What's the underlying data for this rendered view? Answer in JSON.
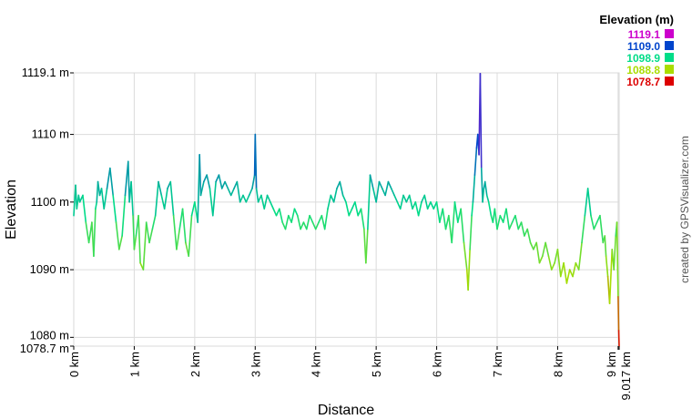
{
  "chart_data": {
    "type": "line",
    "xlabel": "Distance",
    "ylabel": "Elevation",
    "xlim": [
      0,
      9.017
    ],
    "ylim": [
      1078.7,
      1119.1
    ],
    "x_ticks": [
      {
        "value": 0,
        "label": "0 km"
      },
      {
        "value": 1,
        "label": "1 km"
      },
      {
        "value": 2,
        "label": "2 km"
      },
      {
        "value": 3,
        "label": "3 km"
      },
      {
        "value": 4,
        "label": "4 km"
      },
      {
        "value": 5,
        "label": "5 km"
      },
      {
        "value": 6,
        "label": "6 km"
      },
      {
        "value": 7,
        "label": "7 km"
      },
      {
        "value": 8,
        "label": "8 km"
      },
      {
        "value": 9,
        "label": "9 km"
      },
      {
        "value": 9.017,
        "label": "9.017 km"
      }
    ],
    "y_ticks": [
      {
        "value": 1078.7,
        "label": "1078.7 m"
      },
      {
        "value": 1080,
        "label": "1080 m"
      },
      {
        "value": 1090,
        "label": "1090 m"
      },
      {
        "value": 1100,
        "label": "1100 m"
      },
      {
        "value": 1110,
        "label": "1110 m"
      },
      {
        "value": 1119.1,
        "label": "1119.1 m"
      }
    ],
    "grid": true,
    "legend": {
      "title": "Elevation (m)",
      "placement": "top-right",
      "entries": [
        {
          "label": "1119.1",
          "color": "#cc00cc"
        },
        {
          "label": "1109.0",
          "color": "#0044cc"
        },
        {
          "label": "1098.9",
          "color": "#00dd88"
        },
        {
          "label": "1088.8",
          "color": "#aadd00"
        },
        {
          "label": "1078.7",
          "color": "#dd0000"
        }
      ]
    },
    "series": [
      {
        "x": [
          0,
          0.03,
          0.05,
          0.08,
          0.1,
          0.15,
          0.2,
          0.25,
          0.3,
          0.33,
          0.36,
          0.38,
          0.4,
          0.43,
          0.46,
          0.5,
          0.55,
          0.6,
          0.65,
          0.7,
          0.75,
          0.8,
          0.85,
          0.9,
          0.92,
          0.95,
          0.98,
          1.0,
          1.03,
          1.07,
          1.1,
          1.15,
          1.2,
          1.25,
          1.3,
          1.35,
          1.4,
          1.45,
          1.5,
          1.55,
          1.6,
          1.65,
          1.7,
          1.75,
          1.8,
          1.85,
          1.9,
          1.95,
          2.0,
          2.05,
          2.08,
          2.1,
          2.15,
          2.2,
          2.25,
          2.3,
          2.35,
          2.4,
          2.45,
          2.5,
          2.55,
          2.6,
          2.65,
          2.7,
          2.75,
          2.8,
          2.85,
          2.9,
          2.95,
          2.99,
          3.0,
          3.02,
          3.05,
          3.1,
          3.15,
          3.2,
          3.25,
          3.3,
          3.35,
          3.4,
          3.45,
          3.5,
          3.55,
          3.6,
          3.65,
          3.7,
          3.75,
          3.8,
          3.85,
          3.9,
          3.95,
          4.0,
          4.05,
          4.1,
          4.15,
          4.2,
          4.25,
          4.3,
          4.35,
          4.4,
          4.45,
          4.5,
          4.55,
          4.6,
          4.65,
          4.7,
          4.75,
          4.8,
          4.83,
          4.86,
          4.9,
          4.95,
          5.0,
          5.05,
          5.1,
          5.15,
          5.2,
          5.25,
          5.3,
          5.35,
          5.4,
          5.45,
          5.5,
          5.55,
          5.6,
          5.65,
          5.7,
          5.75,
          5.8,
          5.85,
          5.9,
          5.95,
          6.0,
          6.05,
          6.1,
          6.15,
          6.2,
          6.25,
          6.3,
          6.35,
          6.4,
          6.45,
          6.5,
          6.52,
          6.55,
          6.58,
          6.6,
          6.63,
          6.66,
          6.68,
          6.7,
          6.72,
          6.74,
          6.76,
          6.78,
          6.8,
          6.83,
          6.86,
          6.9,
          6.93,
          6.96,
          7.0,
          7.05,
          7.1,
          7.15,
          7.2,
          7.25,
          7.3,
          7.35,
          7.4,
          7.45,
          7.5,
          7.55,
          7.6,
          7.65,
          7.7,
          7.75,
          7.8,
          7.85,
          7.9,
          7.95,
          8.0,
          8.05,
          8.1,
          8.15,
          8.2,
          8.25,
          8.3,
          8.35,
          8.4,
          8.45,
          8.5,
          8.55,
          8.6,
          8.65,
          8.7,
          8.75,
          8.78,
          8.8,
          8.83,
          8.86,
          8.9,
          8.93,
          8.96,
          8.98,
          9.0,
          9.01,
          9.017
        ],
        "y": [
          1098,
          1102.5,
          1099,
          1101,
          1100,
          1101,
          1097,
          1094,
          1097,
          1092,
          1099,
          1100,
          1103,
          1101,
          1102,
          1099,
          1102,
          1105,
          1101,
          1097,
          1093,
          1095,
          1101,
          1106,
          1100,
          1103,
          1098,
          1093,
          1095,
          1098,
          1091,
          1090,
          1097,
          1094,
          1096,
          1098,
          1103,
          1101,
          1099,
          1102,
          1103,
          1098,
          1093,
          1096,
          1099,
          1094,
          1092,
          1098,
          1100,
          1097,
          1107,
          1101,
          1103,
          1104,
          1102,
          1098,
          1103,
          1104,
          1102,
          1103,
          1102,
          1101,
          1102,
          1103,
          1100,
          1101,
          1100,
          1101,
          1102,
          1104,
          1110,
          1102,
          1100,
          1101,
          1099,
          1101,
          1100,
          1099,
          1098,
          1099,
          1097,
          1096,
          1098,
          1097,
          1099,
          1098,
          1096,
          1097,
          1096,
          1098,
          1097,
          1096,
          1097,
          1098,
          1096,
          1099,
          1101,
          1100,
          1102,
          1103,
          1101,
          1100,
          1098,
          1099,
          1100,
          1098,
          1099,
          1096,
          1091,
          1096,
          1104,
          1102,
          1100,
          1103,
          1102,
          1101,
          1103,
          1102,
          1101,
          1100,
          1099,
          1101,
          1100,
          1101,
          1099,
          1100,
          1098,
          1100,
          1101,
          1099,
          1100,
          1099,
          1100,
          1097,
          1099,
          1096,
          1098,
          1094,
          1100,
          1097,
          1099,
          1094,
          1090,
          1087,
          1093,
          1098,
          1100,
          1104,
          1108,
          1110,
          1107,
          1119,
          1105,
          1100,
          1102,
          1103,
          1101,
          1100,
          1098,
          1097,
          1099,
          1096,
          1098,
          1097,
          1099,
          1096,
          1097,
          1098,
          1096,
          1097,
          1095,
          1096,
          1094,
          1093,
          1094,
          1091,
          1092,
          1094,
          1092,
          1090,
          1091,
          1093,
          1089,
          1091,
          1088,
          1090,
          1089,
          1091,
          1090,
          1094,
          1098,
          1102,
          1098,
          1096,
          1097,
          1098,
          1094,
          1095,
          1092,
          1089,
          1085,
          1093,
          1090,
          1095,
          1097,
          1086,
          1081,
          1078.7
        ]
      }
    ]
  },
  "credit": "created by GPSVisualizer.com"
}
